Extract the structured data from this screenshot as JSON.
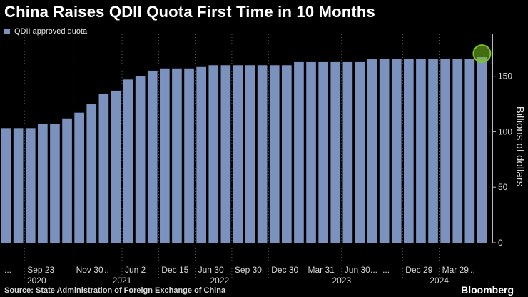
{
  "title": "China Raises QDII Quota First Time in 10 Months",
  "source": "Source: State Administration of Foreign Exchange of China",
  "brand": "Bloomberg",
  "colors": {
    "bar": "#7a92bd",
    "highlight": "#7cc421",
    "grid": "#5a5a5a",
    "axis": "#bbbbbb"
  },
  "chart_data": {
    "type": "bar",
    "title": "China Raises QDII Quota First Time in 10 Months",
    "legend": [
      "QDII approved quota"
    ],
    "legend_position": "top-left",
    "ylabel": "Billions of dollars",
    "ylim": [
      0,
      180
    ],
    "yticks": [
      0,
      50,
      100,
      150
    ],
    "grid": "vertical dotted at labeled dates",
    "series": [
      {
        "name": "QDII approved quota",
        "values": [
          103.3,
          103.3,
          103.3,
          107.1,
          107.1,
          112.0,
          117.2,
          124.7,
          134.0,
          137.0,
          147.0,
          150.0,
          155.0,
          157.0,
          157.0,
          157.0,
          158.3,
          159.9,
          159.9,
          159.9,
          159.9,
          159.9,
          159.9,
          159.9,
          162.7,
          162.7,
          162.7,
          162.7,
          162.7,
          162.7,
          165.5,
          165.5,
          165.5,
          165.5,
          165.5,
          165.5,
          165.5,
          165.5,
          165.5,
          167.1
        ]
      }
    ],
    "highlight_last": true,
    "x_tick_labels": [
      {
        "label": "...",
        "bar": 0
      },
      {
        "label": "Sep 23",
        "bar": 2
      },
      {
        "label": "Nov 30",
        "bar": 6
      },
      {
        "label": "...",
        "bar": 8
      },
      {
        "label": "Jun 2",
        "bar": 10
      },
      {
        "label": "Dec 15",
        "bar": 13
      },
      {
        "label": "Jun 30",
        "bar": 16
      },
      {
        "label": "Sep 30",
        "bar": 19
      },
      {
        "label": "Dec 30",
        "bar": 22
      },
      {
        "label": "Mar 31",
        "bar": 25
      },
      {
        "label": "Jun 30",
        "bar": 28
      },
      {
        "label": "...",
        "bar": 30
      },
      {
        "label": "...",
        "bar": 31
      },
      {
        "label": "Dec 29",
        "bar": 33
      },
      {
        "label": "Mar 29",
        "bar": 36
      },
      {
        "label": "...",
        "bar": 38
      }
    ],
    "year_labels": [
      {
        "label": "2020",
        "bar": 3
      },
      {
        "label": "2021",
        "bar": 10
      },
      {
        "label": "2022",
        "bar": 18
      },
      {
        "label": "2023",
        "bar": 28
      },
      {
        "label": "2024",
        "bar": 36
      }
    ]
  }
}
